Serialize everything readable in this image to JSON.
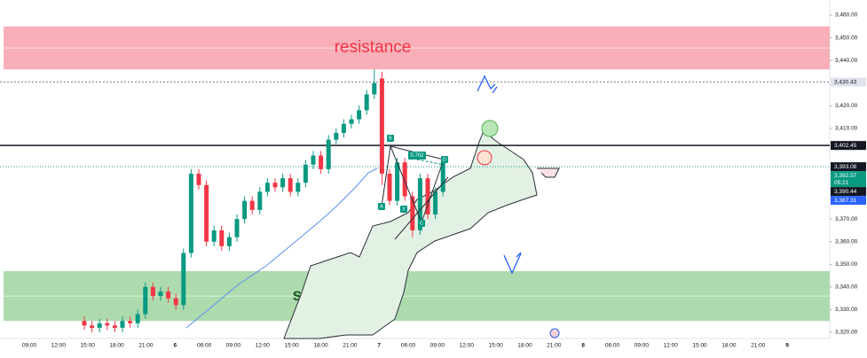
{
  "chart_data": {
    "type": "candlestick",
    "ylim": [
      3320,
      3460
    ],
    "yticks": [
      {
        "value": 3460,
        "label": "3,460.00"
      },
      {
        "value": 3450,
        "label": "3,450.00"
      },
      {
        "value": 3440,
        "label": "3,440.00"
      },
      {
        "value": 3420,
        "label": "3,420.00"
      },
      {
        "value": 3410,
        "label": "3,410.00"
      },
      {
        "value": 3370,
        "label": "3,370.00"
      },
      {
        "value": 3360,
        "label": "3,360.00"
      },
      {
        "value": 3350,
        "label": "3,350.00"
      },
      {
        "value": 3340,
        "label": "3,340.00"
      },
      {
        "value": 3330,
        "label": "3,330.00"
      },
      {
        "value": 3320,
        "label": "3,320.00"
      }
    ],
    "xticks": [
      "09:00",
      "12:00",
      "15:00",
      "18:00",
      "21:00",
      "6",
      "06:00",
      "09:00",
      "12:00",
      "15:00",
      "18:00",
      "21:00",
      "7",
      "06:00",
      "09:00",
      "12:00",
      "15:00",
      "18:00",
      "21:00",
      "8",
      "06:00",
      "09:00",
      "12:00",
      "15:00",
      "18:00",
      "21:00",
      "9"
    ],
    "up_color": "#089981",
    "down_color": "#f23645",
    "open": [
      3325,
      3323,
      3322,
      3324,
      3323,
      3322,
      3325,
      3324,
      3328,
      3340,
      3336,
      3338,
      3335,
      3332,
      3355,
      3390,
      3385,
      3360,
      3365,
      3358,
      3362,
      3370,
      3378,
      3374,
      3382,
      3386,
      3384,
      3388,
      3382,
      3386,
      3394,
      3398,
      3392,
      3405,
      3408,
      3412,
      3414,
      3418,
      3425,
      3432,
      3390,
      3378,
      3395,
      3380,
      3365,
      3388,
      3372,
      3382
    ],
    "high": [
      3327,
      3325,
      3326,
      3326,
      3325,
      3327,
      3327,
      3330,
      3342,
      3342,
      3340,
      3340,
      3337,
      3357,
      3392,
      3392,
      3387,
      3367,
      3367,
      3364,
      3372,
      3380,
      3380,
      3384,
      3388,
      3388,
      3390,
      3390,
      3388,
      3396,
      3400,
      3400,
      3407,
      3410,
      3414,
      3416,
      3420,
      3427,
      3436,
      3435,
      3392,
      3397,
      3397,
      3382,
      3390,
      3390,
      3384,
      3397
    ],
    "low": [
      3321,
      3320,
      3320,
      3321,
      3320,
      3320,
      3322,
      3322,
      3326,
      3334,
      3334,
      3333,
      3330,
      3330,
      3353,
      3383,
      3358,
      3358,
      3356,
      3356,
      3360,
      3368,
      3372,
      3372,
      3380,
      3382,
      3382,
      3380,
      3380,
      3384,
      3392,
      3390,
      3390,
      3403,
      3406,
      3410,
      3412,
      3416,
      3423,
      3385,
      3376,
      3376,
      3378,
      3362,
      3363,
      3370,
      3370,
      3380
    ],
    "close": [
      3323,
      3322,
      3324,
      3323,
      3322,
      3325,
      3324,
      3328,
      3340,
      3336,
      3338,
      3335,
      3332,
      3355,
      3390,
      3385,
      3360,
      3365,
      3358,
      3362,
      3370,
      3378,
      3374,
      3382,
      3386,
      3384,
      3388,
      3382,
      3386,
      3394,
      3398,
      3392,
      3405,
      3408,
      3412,
      3414,
      3418,
      3425,
      3430,
      3390,
      3378,
      3395,
      3380,
      3365,
      3388,
      3372,
      3382,
      3395
    ],
    "zones": [
      {
        "label": "resistance",
        "from": 3436,
        "to": 3455,
        "color": "#f7a1ab",
        "text_color": "#f23645"
      },
      {
        "label": "support",
        "from": 3325,
        "to": 3347,
        "color": "#9fd5a0",
        "text_color": "#1b5e20"
      }
    ],
    "price_lines": [
      {
        "value": 3430.43,
        "label": "3,430.43",
        "color": "#787b86",
        "dashed": true
      },
      {
        "value": 3402.45,
        "label": "3,402.45",
        "color": "#131722",
        "dashed": false
      }
    ],
    "price_tags": [
      {
        "value": 3393.08,
        "label": "3,393.08",
        "color": "#131722"
      },
      {
        "value": 3392.57,
        "label": "3,392.57",
        "color": "#089981"
      },
      {
        "value": 3390.44,
        "label": "3,390.44",
        "color": "#131722"
      },
      {
        "value": 3387.31,
        "label": "3,387.31",
        "color": "#2962ff"
      }
    ],
    "countdown": "05:21",
    "pattern_labels": [
      "X",
      "A",
      "B",
      "C",
      "D"
    ],
    "ratio_label": "0.702"
  }
}
